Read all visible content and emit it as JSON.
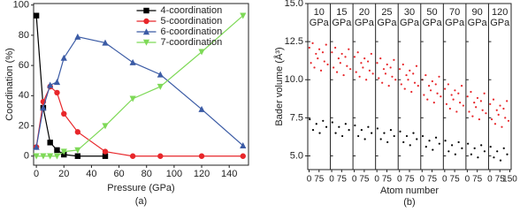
{
  "chart_data": [
    {
      "type": "line",
      "xlabel": "Pressure (GPa)",
      "ylabel": "Coordination (%)",
      "caption": "(a)",
      "x": [
        0,
        5,
        10,
        15,
        20,
        30,
        50,
        70,
        90,
        120,
        150
      ],
      "xlim": [
        -2,
        154
      ],
      "xticks": [
        0,
        20,
        40,
        60,
        80,
        100,
        120,
        140
      ],
      "ylim": [
        -6,
        101
      ],
      "yticks": [
        0,
        20,
        40,
        60,
        80,
        100
      ],
      "legend": "upper center",
      "series": [
        {
          "name": "4-coordination",
          "color": "#000000",
          "marker": "square",
          "values": [
            93,
            32,
            9,
            4,
            1,
            0,
            0,
            null,
            null,
            null,
            null
          ]
        },
        {
          "name": "5-coordination",
          "color": "#e8262a",
          "marker": "circle",
          "values": [
            6,
            36,
            46,
            42,
            28,
            16,
            3,
            0,
            0,
            0,
            0
          ]
        },
        {
          "name": "6-coordination",
          "color": "#3b5ba5",
          "marker": "triangle-up",
          "values": [
            6,
            32,
            47,
            49,
            65,
            79,
            75,
            62,
            54,
            31,
            7
          ]
        },
        {
          "name": "7-coordination",
          "color": "#7ed957",
          "marker": "triangle-down",
          "values": [
            0,
            0,
            0,
            0,
            3,
            4,
            20,
            38,
            46,
            69,
            93
          ]
        }
      ]
    },
    {
      "type": "scatter-panels",
      "xlabel": "Atom number",
      "ylabel": "Bader volume (Å³)",
      "caption": "(b)",
      "ylim": [
        4.1,
        15
      ],
      "yticks": [
        {
          "value": 5,
          "label": "5.0"
        },
        {
          "value": 7.5,
          "label": "7.5"
        },
        {
          "value": 10,
          "label": "10.0"
        },
        {
          "value": 12.5,
          "label": "12.5"
        },
        {
          "value": 15,
          "label": "15.0"
        }
      ],
      "panels": [
        {
          "title": "10",
          "subtitle": "GPa",
          "xlim": [
            -10,
            160
          ],
          "xticks": [
            0,
            75
          ],
          "series": [
            {
              "color": "#e8262a",
              "x": [
                2,
                14,
                27,
                40,
                52,
                65,
                77,
                90,
                103,
                115,
                128,
                140
              ],
              "values": [
                12.1,
                11.1,
                12.4,
                10.8,
                11.7,
                11.4,
                12.0,
                10.6,
                11.8,
                11.2,
                12.3,
                11.0
              ]
            },
            {
              "color": "#000000",
              "x": [
                5,
                30,
                55,
                80,
                105,
                130
              ],
              "values": [
                7.4,
                6.7,
                7.1,
                6.5,
                7.3,
                6.9
              ]
            }
          ]
        },
        {
          "title": "15",
          "subtitle": "GPa",
          "xlim": [
            -10,
            160
          ],
          "xticks": [
            0,
            75
          ],
          "series": [
            {
              "color": "#e8262a",
              "x": [
                2,
                14,
                27,
                40,
                52,
                65,
                77,
                90,
                103,
                115,
                128,
                140
              ],
              "values": [
                11.8,
                10.8,
                12.1,
                10.5,
                11.4,
                11.1,
                11.7,
                10.3,
                11.5,
                10.9,
                12.0,
                10.7
              ]
            },
            {
              "color": "#000000",
              "x": [
                5,
                30,
                55,
                80,
                105,
                130
              ],
              "values": [
                7.2,
                6.5,
                6.9,
                6.3,
                7.1,
                6.7
              ]
            }
          ]
        },
        {
          "title": "20",
          "subtitle": "GPa",
          "xlim": [
            -10,
            160
          ],
          "xticks": [
            0,
            75
          ],
          "series": [
            {
              "color": "#e8262a",
              "x": [
                2,
                14,
                27,
                40,
                52,
                65,
                77,
                90,
                103,
                115,
                128,
                140
              ],
              "values": [
                11.5,
                10.5,
                11.8,
                10.2,
                11.1,
                10.8,
                11.4,
                10.0,
                11.2,
                10.6,
                11.7,
                10.4
              ]
            },
            {
              "color": "#000000",
              "x": [
                5,
                30,
                55,
                80,
                105,
                130
              ],
              "values": [
                7.0,
                6.3,
                6.7,
                6.1,
                6.9,
                6.5
              ]
            }
          ]
        },
        {
          "title": "25",
          "subtitle": "GPa",
          "xlim": [
            -10,
            160
          ],
          "xticks": [
            0,
            75
          ],
          "series": [
            {
              "color": "#e8262a",
              "x": [
                2,
                14,
                27,
                40,
                52,
                65,
                77,
                90,
                103,
                115,
                128,
                140
              ],
              "values": [
                11.1,
                10.1,
                11.4,
                9.8,
                10.7,
                10.4,
                11.0,
                9.6,
                10.8,
                10.2,
                11.3,
                10.0
              ]
            },
            {
              "color": "#000000",
              "x": [
                5,
                30,
                55,
                80,
                105,
                130
              ],
              "values": [
                6.8,
                6.1,
                6.5,
                5.9,
                6.7,
                6.3
              ]
            }
          ]
        },
        {
          "title": "30",
          "subtitle": "GPa",
          "xlim": [
            -10,
            160
          ],
          "xticks": [
            0,
            75
          ],
          "series": [
            {
              "color": "#e8262a",
              "x": [
                2,
                14,
                27,
                40,
                52,
                65,
                77,
                90,
                103,
                115,
                128,
                140
              ],
              "values": [
                10.7,
                9.7,
                11.0,
                9.4,
                10.3,
                10.0,
                10.6,
                9.2,
                10.4,
                9.8,
                10.9,
                9.6
              ]
            },
            {
              "color": "#000000",
              "x": [
                5,
                30,
                55,
                80,
                105,
                130
              ],
              "values": [
                6.6,
                5.9,
                6.3,
                5.7,
                6.5,
                6.1
              ]
            }
          ]
        },
        {
          "title": "50",
          "subtitle": "GPa",
          "xlim": [
            -10,
            160
          ],
          "xticks": [
            0,
            75
          ],
          "series": [
            {
              "color": "#e8262a",
              "x": [
                2,
                14,
                27,
                40,
                52,
                65,
                77,
                90,
                103,
                115,
                128,
                140
              ],
              "values": [
                10.0,
                9.0,
                10.3,
                8.7,
                9.6,
                9.3,
                9.9,
                8.5,
                9.7,
                9.1,
                10.2,
                8.9
              ]
            },
            {
              "color": "#000000",
              "x": [
                5,
                30,
                55,
                80,
                105,
                130
              ],
              "values": [
                6.3,
                5.6,
                6.0,
                5.4,
                6.2,
                5.8
              ]
            }
          ]
        },
        {
          "title": "70",
          "subtitle": "GPa",
          "xlim": [
            -10,
            160
          ],
          "xticks": [
            0,
            75
          ],
          "series": [
            {
              "color": "#e8262a",
              "x": [
                2,
                14,
                27,
                40,
                52,
                65,
                77,
                90,
                103,
                115,
                128,
                140
              ],
              "values": [
                9.4,
                8.4,
                9.7,
                8.1,
                9.0,
                8.7,
                9.3,
                7.9,
                9.1,
                8.5,
                9.6,
                8.3
              ]
            },
            {
              "color": "#000000",
              "x": [
                5,
                30,
                55,
                80,
                105,
                130
              ],
              "values": [
                6.0,
                5.3,
                5.7,
                5.1,
                5.9,
                5.5
              ]
            }
          ]
        },
        {
          "title": "90",
          "subtitle": "GPa",
          "xlim": [
            -10,
            160
          ],
          "xticks": [
            0,
            75
          ],
          "series": [
            {
              "color": "#e8262a",
              "x": [
                2,
                14,
                27,
                40,
                52,
                65,
                77,
                90,
                103,
                115,
                128,
                140
              ],
              "values": [
                8.9,
                7.9,
                9.2,
                7.6,
                8.5,
                8.2,
                8.8,
                7.4,
                8.6,
                8.0,
                9.1,
                7.8
              ]
            },
            {
              "color": "#000000",
              "x": [
                5,
                30,
                55,
                80,
                105,
                130
              ],
              "values": [
                5.8,
                5.1,
                5.5,
                4.9,
                5.7,
                5.3
              ]
            }
          ]
        },
        {
          "title": "120",
          "subtitle": "GPa",
          "xlim": [
            -10,
            160
          ],
          "xticks": [
            0,
            75,
            150
          ],
          "series": [
            {
              "color": "#e8262a",
              "x": [
                2,
                14,
                27,
                40,
                52,
                65,
                77,
                90,
                103,
                115,
                128,
                140
              ],
              "values": [
                8.4,
                7.4,
                8.7,
                7.1,
                8.0,
                7.7,
                8.3,
                6.9,
                8.1,
                7.5,
                8.6,
                7.3
              ]
            },
            {
              "color": "#000000",
              "x": [
                5,
                30,
                55,
                80,
                105,
                130
              ],
              "values": [
                5.6,
                4.9,
                5.3,
                4.7,
                5.5,
                5.1
              ]
            }
          ]
        }
      ]
    }
  ]
}
